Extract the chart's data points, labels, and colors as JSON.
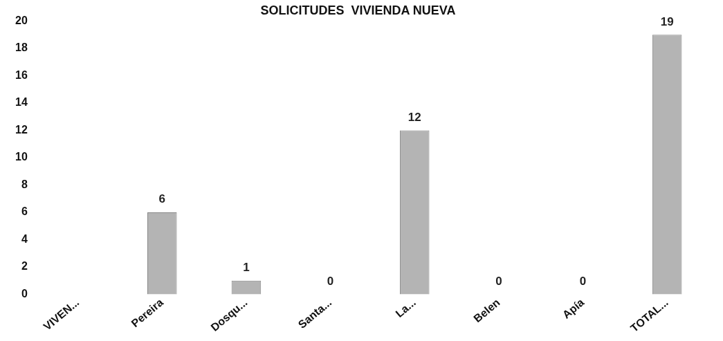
{
  "chart_data": {
    "type": "bar",
    "title": "SOLICITUDES  VIVIENDA NUEVA",
    "categories": [
      "VIVEN...",
      "Pereira",
      "Dosqu...",
      "Santa...",
      "La...",
      "Belen",
      "Apía",
      "TOTAL..."
    ],
    "values": [
      null,
      6,
      1,
      0,
      12,
      0,
      0,
      19
    ],
    "color": "#b4b4b4",
    "ylim": [
      0,
      20
    ],
    "yticks": [
      0,
      2,
      4,
      6,
      8,
      10,
      12,
      14,
      16,
      18,
      20
    ],
    "grid": false,
    "legend": false,
    "data_labels": true
  }
}
